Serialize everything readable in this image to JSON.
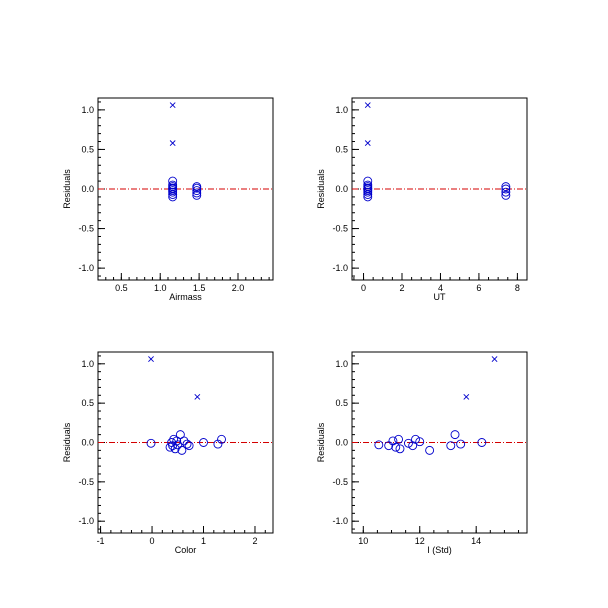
{
  "colors": {
    "marker": "#0000cc",
    "zero_line": "#d40000",
    "axes": "#000000"
  },
  "chart_data": [
    {
      "type": "scatter",
      "xlabel": "Airmass",
      "ylabel": "Residuals",
      "xlim": [
        0.2,
        2.45
      ],
      "ylim": [
        -1.15,
        1.15
      ],
      "xticks": [
        0.5,
        1.0,
        1.5,
        2.0
      ],
      "xtick_labels": [
        "0.5",
        "1.0",
        "1.5",
        "2.0"
      ],
      "x_minor_step": 0.1,
      "yticks": [
        -1.0,
        -0.5,
        0.0,
        0.5,
        1.0
      ],
      "ytick_labels": [
        "-1.0",
        "-0.5",
        "0.0",
        "0.5",
        "1.0"
      ],
      "y_minor_step": 0.1,
      "zero_line": 0,
      "series": [
        {
          "marker": "circle",
          "x": [
            1.16,
            1.16,
            1.16,
            1.16,
            1.16,
            1.16,
            1.16,
            1.16,
            1.16,
            1.47,
            1.47,
            1.47,
            1.47,
            1.47
          ],
          "y": [
            0.1,
            0.05,
            0.03,
            0.01,
            0.0,
            -0.02,
            -0.04,
            -0.07,
            -0.1,
            0.03,
            0.01,
            -0.02,
            -0.05,
            -0.08
          ]
        },
        {
          "marker": "x",
          "x": [
            1.16,
            1.16
          ],
          "y": [
            1.06,
            0.58
          ]
        }
      ]
    },
    {
      "type": "scatter",
      "xlabel": "UT",
      "ylabel": "Residuals",
      "xlim": [
        -0.6,
        8.5
      ],
      "ylim": [
        -1.15,
        1.15
      ],
      "xticks": [
        0,
        2,
        4,
        6,
        8
      ],
      "xtick_labels": [
        "0",
        "2",
        "4",
        "6",
        "8"
      ],
      "x_minor_step": 0.5,
      "yticks": [
        -1.0,
        -0.5,
        0.0,
        0.5,
        1.0
      ],
      "ytick_labels": [
        "-1.0",
        "-0.5",
        "0.0",
        "0.5",
        "1.0"
      ],
      "y_minor_step": 0.1,
      "zero_line": 0,
      "series": [
        {
          "marker": "circle",
          "x": [
            0.22,
            0.22,
            0.22,
            0.22,
            0.22,
            0.22,
            0.22,
            0.22,
            0.22,
            7.4,
            7.4,
            7.4,
            7.4
          ],
          "y": [
            0.1,
            0.05,
            0.03,
            0.01,
            0.0,
            -0.02,
            -0.04,
            -0.07,
            -0.1,
            0.03,
            0.0,
            -0.04,
            -0.08
          ]
        },
        {
          "marker": "x",
          "x": [
            0.22,
            0.22
          ],
          "y": [
            1.06,
            0.58
          ]
        }
      ]
    },
    {
      "type": "scatter",
      "xlabel": "Color",
      "ylabel": "Residuals",
      "xlim": [
        -1.05,
        2.35
      ],
      "ylim": [
        -1.15,
        1.15
      ],
      "xticks": [
        -1,
        0,
        1,
        2
      ],
      "xtick_labels": [
        "-1",
        "0",
        "1",
        "2"
      ],
      "x_minor_step": 0.2,
      "yticks": [
        -1.0,
        -0.5,
        0.0,
        0.5,
        1.0
      ],
      "ytick_labels": [
        "-1.0",
        "-0.5",
        "0.0",
        "0.5",
        "1.0"
      ],
      "y_minor_step": 0.1,
      "zero_line": 0,
      "series": [
        {
          "marker": "circle",
          "x": [
            -0.02,
            0.35,
            0.38,
            0.42,
            0.45,
            0.5,
            0.55,
            0.58,
            0.62,
            0.68,
            0.72,
            1.0,
            1.28,
            1.35,
            0.4,
            0.48
          ],
          "y": [
            -0.01,
            -0.06,
            0.0,
            0.04,
            -0.08,
            -0.03,
            0.1,
            -0.1,
            0.02,
            -0.02,
            -0.04,
            0.0,
            -0.02,
            0.04,
            -0.04,
            0.02
          ]
        },
        {
          "marker": "x",
          "x": [
            -0.02,
            0.88
          ],
          "y": [
            1.06,
            0.58
          ]
        }
      ]
    },
    {
      "type": "scatter",
      "xlabel": "I (Std)",
      "ylabel": "Residuals",
      "xlim": [
        9.6,
        15.8
      ],
      "ylim": [
        -1.15,
        1.15
      ],
      "xticks": [
        10,
        12,
        14
      ],
      "xtick_labels": [
        "10",
        "12",
        "14"
      ],
      "x_minor_step": 0.5,
      "yticks": [
        -1.0,
        -0.5,
        0.0,
        0.5,
        1.0
      ],
      "ytick_labels": [
        "-1.0",
        "-0.5",
        "0.0",
        "0.5",
        "1.0"
      ],
      "y_minor_step": 0.1,
      "zero_line": 0,
      "series": [
        {
          "marker": "circle",
          "x": [
            10.55,
            10.9,
            11.05,
            11.15,
            11.25,
            11.3,
            11.6,
            11.75,
            11.85,
            12.0,
            12.35,
            13.1,
            13.25,
            13.45,
            14.2
          ],
          "y": [
            -0.03,
            -0.04,
            0.02,
            -0.06,
            0.04,
            -0.08,
            -0.01,
            -0.04,
            0.04,
            0.01,
            -0.1,
            -0.04,
            0.1,
            -0.02,
            0.0
          ]
        },
        {
          "marker": "x",
          "x": [
            13.65,
            14.65
          ],
          "y": [
            0.58,
            1.06
          ]
        }
      ]
    }
  ]
}
